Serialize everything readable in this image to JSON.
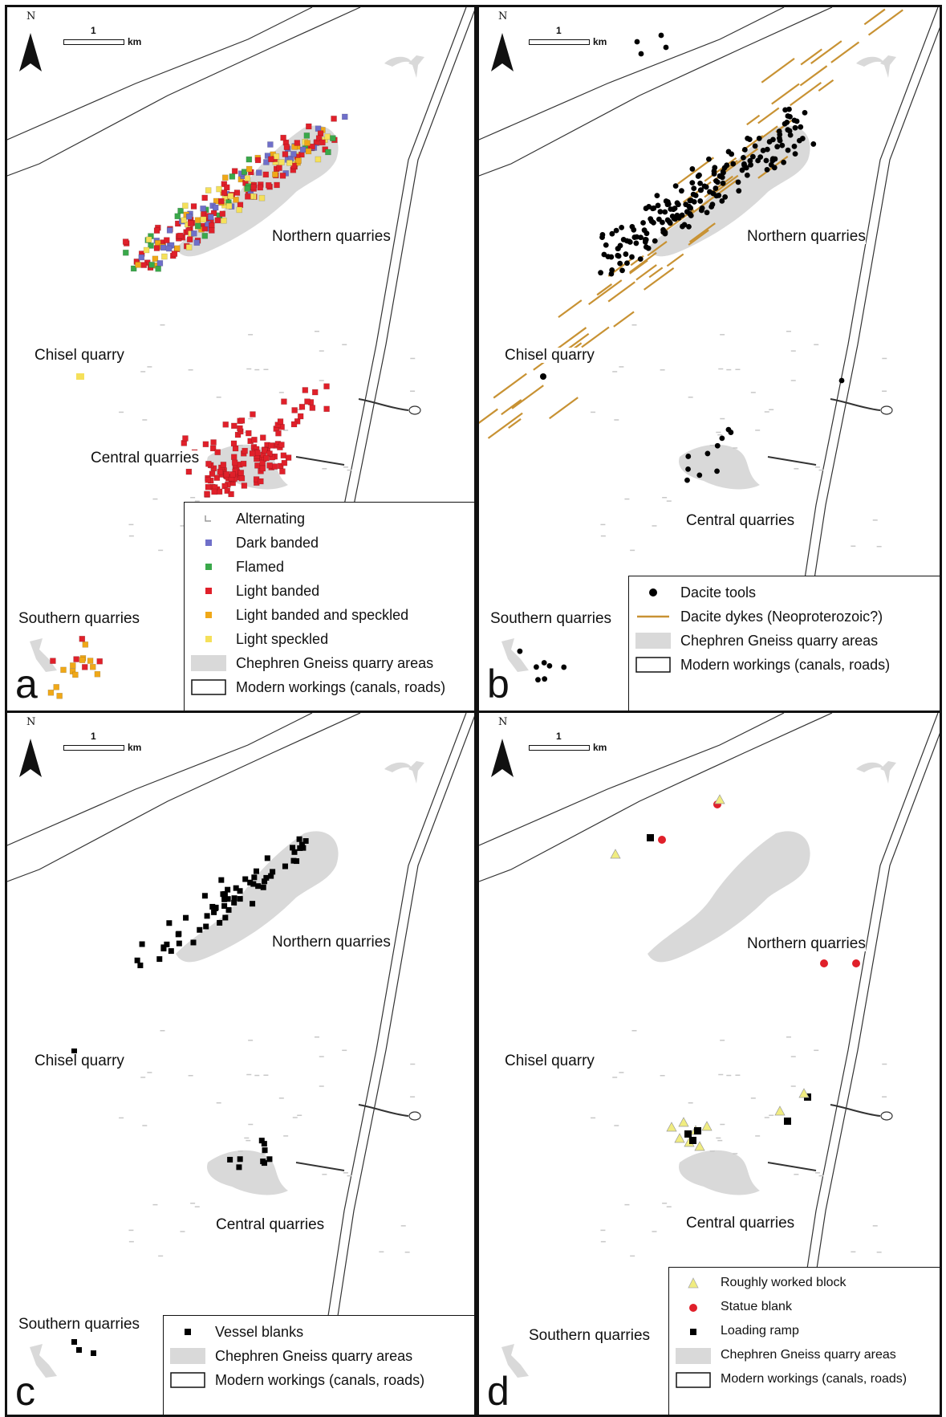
{
  "north_label": "N",
  "scale": {
    "number": "1",
    "unit": "km"
  },
  "place_names": {
    "northern": "Northern quarries",
    "chisel": "Chisel quarry",
    "central": "Central quarries",
    "southern": "Southern quarries"
  },
  "panels": [
    {
      "letter": "a",
      "legend": [
        {
          "label": "Alternating",
          "symbol": "square",
          "color": "#ffffff"
        },
        {
          "label": "Dark banded",
          "symbol": "square",
          "color": "#6f6fc9"
        },
        {
          "label": "Flamed",
          "symbol": "square",
          "color": "#3aa84a"
        },
        {
          "label": "Light banded",
          "symbol": "square",
          "color": "#e0202a"
        },
        {
          "label": "Light banded and speckled",
          "symbol": "square",
          "color": "#f0a818"
        },
        {
          "label": "Light speckled",
          "symbol": "square",
          "color": "#f5e05a"
        },
        {
          "label": "Chephren Gneiss quarry areas",
          "symbol": "grey-box",
          "color": "#d9d9d9"
        },
        {
          "label": "Modern workings (canals, roads)",
          "symbol": "white-box",
          "color": "#ffffff"
        }
      ]
    },
    {
      "letter": "b",
      "legend": [
        {
          "label": "Dacite tools",
          "symbol": "dot",
          "color": "#000000"
        },
        {
          "label": "Dacite dykes (Neoproterozoic?)",
          "symbol": "line",
          "color": "#c89233"
        },
        {
          "label": "Chephren Gneiss quarry areas",
          "symbol": "grey-box",
          "color": "#d9d9d9"
        },
        {
          "label": "Modern workings (canals, roads)",
          "symbol": "white-box",
          "color": "#ffffff"
        }
      ]
    },
    {
      "letter": "c",
      "legend": [
        {
          "label": "Vessel blanks",
          "symbol": "square",
          "color": "#000000"
        },
        {
          "label": "Chephren Gneiss quarry areas",
          "symbol": "grey-box",
          "color": "#d9d9d9"
        },
        {
          "label": "Modern workings (canals, roads)",
          "symbol": "white-box",
          "color": "#ffffff"
        }
      ]
    },
    {
      "letter": "d",
      "legend": [
        {
          "label": "Roughly worked block",
          "symbol": "triangle",
          "color": "#f0ec80"
        },
        {
          "label": "Statue blank",
          "symbol": "dot",
          "color": "#e0202a"
        },
        {
          "label": "Loading ramp",
          "symbol": "square",
          "color": "#000000"
        },
        {
          "label": "Chephren Gneiss quarry areas",
          "symbol": "grey-box",
          "color": "#d9d9d9"
        },
        {
          "label": "Modern workings (canals, roads)",
          "symbol": "white-box",
          "color": "#ffffff"
        }
      ]
    }
  ]
}
